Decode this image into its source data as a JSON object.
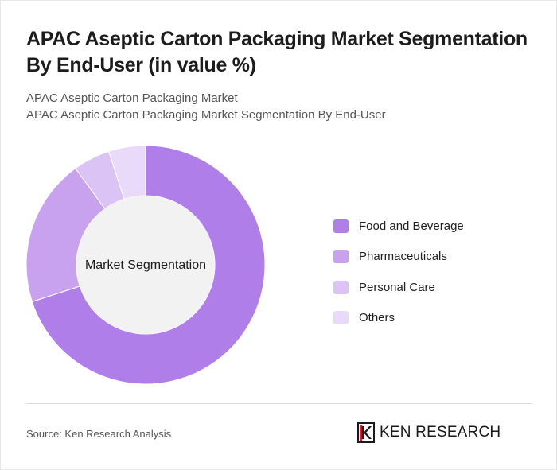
{
  "header": {
    "title": "APAC Aseptic Carton Packaging Market Segmentation By End-User (in value %)",
    "subtitle_line1": "APAC Aseptic Carton Packaging Market",
    "subtitle_line2": "APAC Aseptic Carton Packaging Market Segmentation By End-User"
  },
  "chart_data": {
    "type": "pie",
    "variant": "donut",
    "center_label": "Market Segmentation",
    "legend_position": "right",
    "categories": [
      "Food and Beverage",
      "Pharmaceuticals",
      "Personal Care",
      "Others"
    ],
    "values": [
      70,
      20,
      5,
      5
    ],
    "colors": [
      "#b07ee8",
      "#c8a2ef",
      "#dcc3f5",
      "#e9daf9"
    ],
    "center_fill": "#f2f2f2"
  },
  "footer": {
    "source": "Source: Ken Research Analysis",
    "brand": "KEN RESEARCH",
    "brand_logo_letter": "K"
  }
}
